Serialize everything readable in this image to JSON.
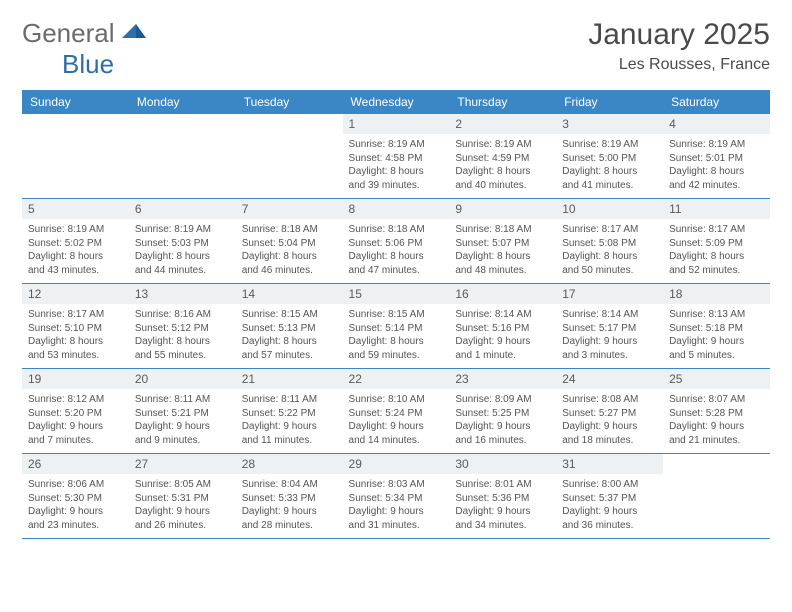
{
  "brand": {
    "name_a": "General",
    "name_b": "Blue"
  },
  "title": "January 2025",
  "location": "Les Rousses, France",
  "colors": {
    "header_bg": "#3b86c4",
    "header_text": "#ffffff",
    "daynum_bg": "#eef1f3",
    "border": "#3b86c4",
    "body_text": "#555555",
    "logo_gray": "#6b6b6b",
    "logo_blue": "#2f6fa8"
  },
  "weekdays": [
    "Sunday",
    "Monday",
    "Tuesday",
    "Wednesday",
    "Thursday",
    "Friday",
    "Saturday"
  ],
  "weeks": [
    [
      null,
      null,
      null,
      {
        "n": "1",
        "sr": "8:19 AM",
        "ss": "4:58 PM",
        "dh": "8",
        "dm": "39"
      },
      {
        "n": "2",
        "sr": "8:19 AM",
        "ss": "4:59 PM",
        "dh": "8",
        "dm": "40"
      },
      {
        "n": "3",
        "sr": "8:19 AM",
        "ss": "5:00 PM",
        "dh": "8",
        "dm": "41"
      },
      {
        "n": "4",
        "sr": "8:19 AM",
        "ss": "5:01 PM",
        "dh": "8",
        "dm": "42"
      }
    ],
    [
      {
        "n": "5",
        "sr": "8:19 AM",
        "ss": "5:02 PM",
        "dh": "8",
        "dm": "43"
      },
      {
        "n": "6",
        "sr": "8:19 AM",
        "ss": "5:03 PM",
        "dh": "8",
        "dm": "44"
      },
      {
        "n": "7",
        "sr": "8:18 AM",
        "ss": "5:04 PM",
        "dh": "8",
        "dm": "46"
      },
      {
        "n": "8",
        "sr": "8:18 AM",
        "ss": "5:06 PM",
        "dh": "8",
        "dm": "47"
      },
      {
        "n": "9",
        "sr": "8:18 AM",
        "ss": "5:07 PM",
        "dh": "8",
        "dm": "48"
      },
      {
        "n": "10",
        "sr": "8:17 AM",
        "ss": "5:08 PM",
        "dh": "8",
        "dm": "50"
      },
      {
        "n": "11",
        "sr": "8:17 AM",
        "ss": "5:09 PM",
        "dh": "8",
        "dm": "52"
      }
    ],
    [
      {
        "n": "12",
        "sr": "8:17 AM",
        "ss": "5:10 PM",
        "dh": "8",
        "dm": "53"
      },
      {
        "n": "13",
        "sr": "8:16 AM",
        "ss": "5:12 PM",
        "dh": "8",
        "dm": "55"
      },
      {
        "n": "14",
        "sr": "8:15 AM",
        "ss": "5:13 PM",
        "dh": "8",
        "dm": "57"
      },
      {
        "n": "15",
        "sr": "8:15 AM",
        "ss": "5:14 PM",
        "dh": "8",
        "dm": "59"
      },
      {
        "n": "16",
        "sr": "8:14 AM",
        "ss": "5:16 PM",
        "dh": "9",
        "dm": "1",
        "dmword": "minute"
      },
      {
        "n": "17",
        "sr": "8:14 AM",
        "ss": "5:17 PM",
        "dh": "9",
        "dm": "3"
      },
      {
        "n": "18",
        "sr": "8:13 AM",
        "ss": "5:18 PM",
        "dh": "9",
        "dm": "5"
      }
    ],
    [
      {
        "n": "19",
        "sr": "8:12 AM",
        "ss": "5:20 PM",
        "dh": "9",
        "dm": "7"
      },
      {
        "n": "20",
        "sr": "8:11 AM",
        "ss": "5:21 PM",
        "dh": "9",
        "dm": "9"
      },
      {
        "n": "21",
        "sr": "8:11 AM",
        "ss": "5:22 PM",
        "dh": "9",
        "dm": "11"
      },
      {
        "n": "22",
        "sr": "8:10 AM",
        "ss": "5:24 PM",
        "dh": "9",
        "dm": "14"
      },
      {
        "n": "23",
        "sr": "8:09 AM",
        "ss": "5:25 PM",
        "dh": "9",
        "dm": "16"
      },
      {
        "n": "24",
        "sr": "8:08 AM",
        "ss": "5:27 PM",
        "dh": "9",
        "dm": "18"
      },
      {
        "n": "25",
        "sr": "8:07 AM",
        "ss": "5:28 PM",
        "dh": "9",
        "dm": "21"
      }
    ],
    [
      {
        "n": "26",
        "sr": "8:06 AM",
        "ss": "5:30 PM",
        "dh": "9",
        "dm": "23"
      },
      {
        "n": "27",
        "sr": "8:05 AM",
        "ss": "5:31 PM",
        "dh": "9",
        "dm": "26"
      },
      {
        "n": "28",
        "sr": "8:04 AM",
        "ss": "5:33 PM",
        "dh": "9",
        "dm": "28"
      },
      {
        "n": "29",
        "sr": "8:03 AM",
        "ss": "5:34 PM",
        "dh": "9",
        "dm": "31"
      },
      {
        "n": "30",
        "sr": "8:01 AM",
        "ss": "5:36 PM",
        "dh": "9",
        "dm": "34"
      },
      {
        "n": "31",
        "sr": "8:00 AM",
        "ss": "5:37 PM",
        "dh": "9",
        "dm": "36"
      },
      null
    ]
  ]
}
